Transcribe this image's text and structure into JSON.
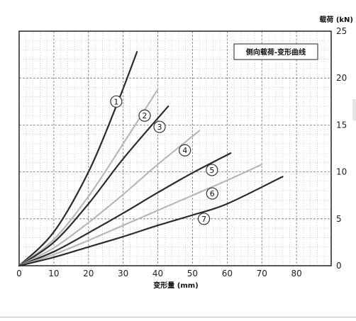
{
  "chart_data": {
    "type": "line",
    "title": "侧向载荷-变形曲线",
    "xlabel": "变形量 (mm)",
    "ylabel": "载荷 (kN)",
    "xlim": [
      0,
      90
    ],
    "ylim": [
      0,
      25
    ],
    "x_ticks": [
      0,
      10,
      20,
      30,
      40,
      50,
      60,
      70,
      80
    ],
    "y_ticks": [
      0,
      5,
      10,
      15,
      20,
      25
    ],
    "y_axis_side": "right",
    "grid": true,
    "legend": "top-right",
    "series": [
      {
        "name": "1",
        "color": "#2b2b2b",
        "x": [
          0,
          10,
          20,
          28,
          34
        ],
        "y": [
          0,
          3.6,
          10,
          17,
          22.8
        ],
        "label_at": [
          28,
          17.5
        ]
      },
      {
        "name": "2",
        "color": "#b8b8b8",
        "x": [
          0,
          10,
          20,
          30,
          40
        ],
        "y": [
          0,
          2.8,
          7.4,
          13,
          18.8
        ],
        "label_at": [
          36.2,
          16
        ]
      },
      {
        "name": "3",
        "color": "#2b2b2b",
        "x": [
          0,
          10,
          20,
          30,
          43
        ],
        "y": [
          0,
          2.5,
          6.6,
          11.4,
          17
        ],
        "label_at": [
          40.5,
          14.8
        ]
      },
      {
        "name": "4",
        "color": "#b8b8b8",
        "x": [
          0,
          10,
          20,
          30,
          40,
          52
        ],
        "y": [
          0,
          1.9,
          4.6,
          7.6,
          10.8,
          14.4
        ],
        "label_at": [
          47.8,
          12.3
        ]
      },
      {
        "name": "5",
        "color": "#2b2b2b",
        "x": [
          0,
          10,
          20,
          30,
          40,
          50,
          61
        ],
        "y": [
          0,
          1.5,
          3.5,
          5.6,
          7.8,
          9.9,
          12
        ],
        "label_at": [
          55.6,
          10.2
        ]
      },
      {
        "name": "6",
        "color": "#b8b8b8",
        "x": [
          0,
          10,
          20,
          30,
          40,
          50,
          60,
          70
        ],
        "y": [
          0,
          1.2,
          2.7,
          4.3,
          5.9,
          7.5,
          9.1,
          10.8
        ],
        "label_at": [
          55.7,
          7.7
        ]
      },
      {
        "name": "7",
        "color": "#2b2b2b",
        "x": [
          0,
          10,
          20,
          30,
          40,
          50,
          60,
          76
        ],
        "y": [
          0,
          0.9,
          2,
          3.1,
          4.3,
          5.4,
          6.6,
          9.5
        ],
        "label_at": [
          53.3,
          5
        ]
      }
    ]
  }
}
